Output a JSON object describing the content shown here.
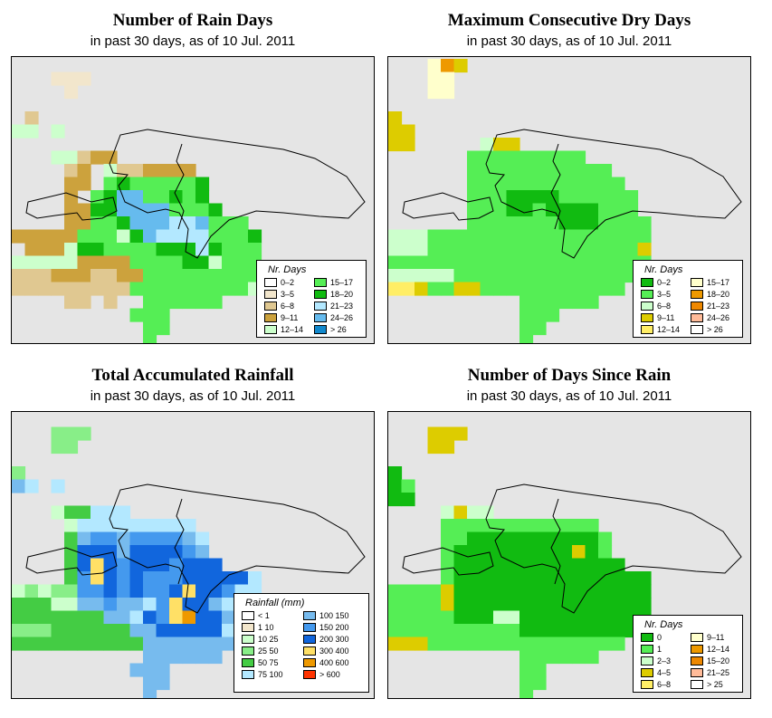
{
  "panels": [
    {
      "title": "Number of Rain Days",
      "subtitle": "in past 30 days, as of  10 Jul. 2011",
      "legend_title": "Nr. Days",
      "legend": [
        {
          "label": "0–2",
          "color": "#ffffff"
        },
        {
          "label": "3–5",
          "color": "#f2e6cc"
        },
        {
          "label": "6–8",
          "color": "#e0c891"
        },
        {
          "label": "9–11",
          "color": "#cca23d"
        },
        {
          "label": "12–14",
          "color": "#ccffcc"
        },
        {
          "label": "15–17",
          "color": "#55ee55"
        },
        {
          "label": "18–20",
          "color": "#11bb11"
        },
        {
          "label": "21–23",
          "color": "#b3e8ff"
        },
        {
          "label": "24–26",
          "color": "#66bbee"
        },
        {
          "label": "> 26",
          "color": "#1188cc"
        }
      ],
      "palette": {
        "a": "#f2e6cc",
        "b": "#e0c891",
        "c": "#cca23d",
        "d": "#ccffcc",
        "e": "#55ee55",
        "f": "#11bb11",
        "g": "#b3e8ff",
        "h": "#66bbee"
      },
      "grid": [
        "....................",
        "...aaa..............",
        "....a...............",
        "....................",
        ".b..................",
        "dd.d................",
        "....................",
        "...ddbcc............",
        "....bc.dbbcccc......",
        "....cc.efeeeeef.....",
        "....c.efhheefef.....",
        "....ccffhhhheeef....",
        "....cceefhhhggheee..",
        "ccccceeedfhggggeeef.",
        ".cccdffeeeefffgfeee.",
        "dddddcccceeeeffdeee.",
        "bbbcccbbcceeeeeeeeee",
        "bbbbbbbbbeeeeeeeeed.",
        "....bb.b..eeeeee....",
        ".........eee........",
        "..........ee........",
        "..........e........."
      ]
    },
    {
      "title": "Maximum Consecutive Dry Days",
      "subtitle": "in past 30 days, as of  10 Jul. 2011",
      "legend_title": "Nr. Days",
      "legend": [
        {
          "label": "0–2",
          "color": "#11bb11"
        },
        {
          "label": "3–5",
          "color": "#55ee55"
        },
        {
          "label": "6–8",
          "color": "#ccffcc"
        },
        {
          "label": "9–11",
          "color": "#ddcc00"
        },
        {
          "label": "12–14",
          "color": "#ffee66"
        },
        {
          "label": "15–17",
          "color": "#ffffcc"
        },
        {
          "label": "18–20",
          "color": "#ee9900"
        },
        {
          "label": "21–23",
          "color": "#ee8800"
        },
        {
          "label": "24–26",
          "color": "#ffbb99"
        },
        {
          "label": "> 26",
          "color": "#ffffff"
        }
      ],
      "palette": {
        "a": "#11bb11",
        "b": "#55ee55",
        "c": "#ccffcc",
        "d": "#ddcc00",
        "e": "#ffee66",
        "f": "#ffffcc",
        "g": "#ee9900"
      },
      "grid": [
        "...fgd..............",
        "...ff...............",
        "...ff...............",
        "....................",
        "d...................",
        "dd..................",
        "dd.....cdd..........",
        "......bbbbbbbbb.....",
        "......bbbbbbbbbbb...",
        "......bbbbbbbbbbbb..",
        "......bbbaaaabbbbbb.",
        "......bbbaabaaaabbb.",
        "......bbbbbbbaaabbbb",
        "cccbbbbbbbbbbbbbbbbb",
        "cccbbbbbbbbbbbbbbbbd",
        "bbbbbbbbbbbbbbbbbbbb",
        "cccccbbbbbbbbbbbbbbb",
        "eedbbddbbbbbbbbbbb..",
        "..........bbbbbb....",
        "..........bbb.......",
        "..........bb........",
        "..........b........."
      ]
    },
    {
      "title": "Total Accumulated Rainfall",
      "subtitle": "in past 30 days, as of  10 Jul. 2011",
      "legend_title": "Rainfall (mm)",
      "legend": [
        {
          "label": "< 1",
          "color": "#ffffff"
        },
        {
          "label": "1   10",
          "color": "#f2e6cc"
        },
        {
          "label": "10   25",
          "color": "#ccffcc"
        },
        {
          "label": "25   50",
          "color": "#88ee88"
        },
        {
          "label": "50   75",
          "color": "#44cc44"
        },
        {
          "label": "75  100",
          "color": "#b3e8ff"
        },
        {
          "label": "100  150",
          "color": "#77bbee"
        },
        {
          "label": "150  200",
          "color": "#4499ee"
        },
        {
          "label": "200  300",
          "color": "#1166dd"
        },
        {
          "label": "300  400",
          "color": "#ffe066"
        },
        {
          "label": "400  600",
          "color": "#ee9900"
        },
        {
          "label": "> 600",
          "color": "#ff3300"
        }
      ],
      "palette": {
        "a": "#ccffcc",
        "b": "#88ee88",
        "c": "#44cc44",
        "d": "#b3e8ff",
        "e": "#77bbee",
        "f": "#4499ee",
        "g": "#1166dd",
        "h": "#ffe066",
        "i": "#ee9900"
      },
      "grid": [
        "....................",
        "...bbb..............",
        "...bb...............",
        "....................",
        "b...................",
        "ed.d................",
        "....................",
        "...accddd...........",
        "....addddddddd......",
        "....ceffeffffed.....",
        "....cgggeggggfe.....",
        "....cghgfgggfggg....",
        "....cfhgfgfffgggggd.",
        "ababbffgfgffghggfdd.",
        "cccaaeefeedfhggedde.",
        "ccccccceedgfhiggede.",
        "bbbcccccceegggggdddd",
        "cccccccccceeeeeeeee.",
        "..........eeeeee....",
        ".........eee........",
        "..........ee........",
        "..........e........."
      ]
    },
    {
      "title": "Number of Days Since Rain",
      "subtitle": "in past 30 days, as of  10 Jul. 2011",
      "legend_title": "Nr. Days",
      "legend": [
        {
          "label": "0",
          "color": "#11bb11"
        },
        {
          "label": "1",
          "color": "#55ee55"
        },
        {
          "label": "2–3",
          "color": "#ccffcc"
        },
        {
          "label": "4–5",
          "color": "#ddcc00"
        },
        {
          "label": "6–8",
          "color": "#ffee66"
        },
        {
          "label": "9–11",
          "color": "#ffffcc"
        },
        {
          "label": "12–14",
          "color": "#ee9900"
        },
        {
          "label": "15–20",
          "color": "#ee8800"
        },
        {
          "label": "21–25",
          "color": "#ffbb99"
        },
        {
          "label": "> 25",
          "color": "#ffffff"
        }
      ],
      "palette": {
        "a": "#11bb11",
        "b": "#55ee55",
        "c": "#ccffcc",
        "d": "#ddcc00",
        "e": "#ffee66"
      },
      "grid": [
        "....................",
        "...ddd..............",
        "...dd...............",
        "....................",
        "a...................",
        "ab..................",
        "aa..................",
        "....cdcc............",
        "....bbbbbbbbbbbb....",
        "....bbaaaaaaaaaab...",
        "....baaaaaaaaadab...",
        "....baaaaaaaaaaaaa..",
        "....baaaaaaaaaaaaaaa",
        "bbbbdaaaaaaaaaaaaaaa",
        "bbbbdaaaaaaaaaaaaaaa",
        "bbbbbaaaccaaaaaaaaaa",
        "bbbbbbbbbbaaaaaaaaa.",
        "dddbbbbbbbbbbbbbbb..",
        "..........bbbbbb....",
        "..........bb........",
        "..........bb........",
        "..........b........."
      ]
    }
  ]
}
